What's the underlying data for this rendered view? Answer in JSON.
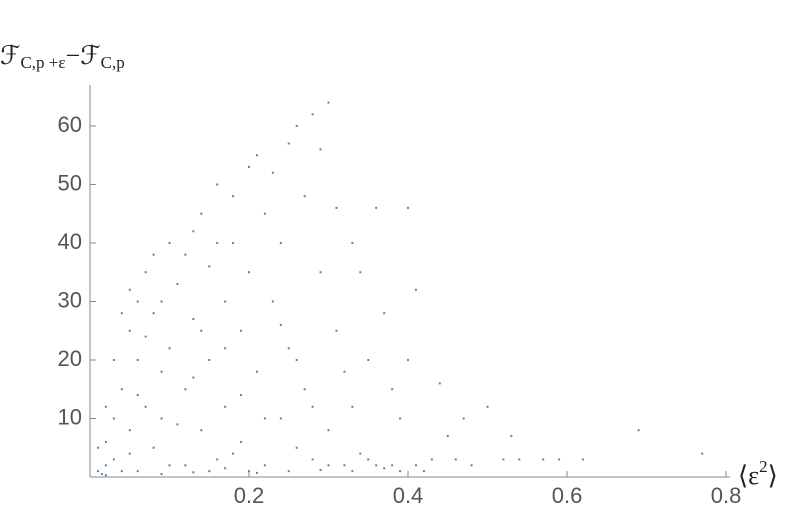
{
  "chart_data": {
    "type": "scatter",
    "x_label": {
      "open": "⟨ε",
      "power": "2",
      "close": "⟩"
    },
    "y_label": {
      "main1": "ℱ",
      "sub1": "C,p +ε",
      "op": "−",
      "main2": "ℱ",
      "sub2": "C,p"
    },
    "color": "#5b7fb8",
    "xlim": [
      0,
      0.805
    ],
    "ylim": [
      0,
      67
    ],
    "xticks": [
      0.2,
      0.4,
      0.6,
      0.8
    ],
    "yticks": [
      10,
      20,
      30,
      40,
      50,
      60
    ],
    "x": [
      0.01,
      0.02,
      0.015,
      0.03,
      0.02,
      0.04,
      0.05,
      0.03,
      0.04,
      0.05,
      0.06,
      0.05,
      0.07,
      0.06,
      0.08,
      0.07,
      0.09,
      0.08,
      0.1,
      0.09,
      0.1,
      0.11,
      0.12,
      0.12,
      0.13,
      0.13,
      0.14,
      0.14,
      0.15,
      0.15,
      0.16,
      0.16,
      0.17,
      0.17,
      0.18,
      0.18,
      0.19,
      0.19,
      0.2,
      0.2,
      0.21,
      0.21,
      0.22,
      0.22,
      0.23,
      0.23,
      0.24,
      0.24,
      0.25,
      0.25,
      0.26,
      0.26,
      0.27,
      0.27,
      0.28,
      0.28,
      0.29,
      0.29,
      0.3,
      0.3,
      0.31,
      0.31,
      0.32,
      0.33,
      0.33,
      0.34,
      0.35,
      0.35,
      0.36,
      0.37,
      0.38,
      0.38,
      0.39,
      0.4,
      0.4,
      0.41,
      0.41,
      0.43,
      0.44,
      0.45,
      0.46,
      0.47,
      0.48,
      0.5,
      0.52,
      0.53,
      0.54,
      0.57,
      0.59,
      0.62,
      0.69,
      0.77,
      0.02,
      0.03,
      0.04,
      0.05,
      0.06,
      0.07,
      0.08,
      0.09,
      0.1,
      0.11,
      0.12,
      0.13,
      0.14,
      0.15,
      0.16,
      0.17,
      0.18,
      0.19,
      0.2,
      0.22,
      0.24,
      0.26,
      0.28,
      0.3,
      0.32,
      0.34,
      0.36,
      0.39,
      0.42,
      0.01,
      0.02,
      0.06,
      0.09,
      0.13,
      0.17,
      0.21,
      0.25,
      0.29,
      0.33,
      0.37
    ],
    "values": [
      1,
      2,
      0.5,
      3,
      6,
      1,
      4,
      10,
      15,
      8,
      20,
      25,
      12,
      30,
      5,
      35,
      18,
      28,
      40,
      10,
      22,
      33,
      2,
      15,
      42,
      27,
      8,
      45,
      36,
      20,
      50,
      3,
      30,
      12,
      48,
      40,
      25,
      6,
      53,
      35,
      55,
      18,
      45,
      2,
      52,
      30,
      40,
      10,
      57,
      22,
      60,
      5,
      48,
      15,
      62,
      3,
      56,
      35,
      64,
      8,
      46,
      25,
      2,
      40,
      12,
      35,
      3,
      20,
      46,
      28,
      2,
      15,
      10,
      46,
      20,
      32,
      2,
      3,
      16,
      7,
      3,
      10,
      2,
      12,
      3,
      7,
      3,
      3,
      3,
      3,
      8,
      4,
      12,
      20,
      28,
      32,
      14,
      24,
      38,
      30,
      2,
      9,
      38,
      17,
      25,
      1,
      40,
      22,
      4,
      14,
      1,
      10,
      26,
      20,
      12,
      2,
      18,
      4,
      2,
      1,
      1,
      5,
      0.3,
      1,
      0.5,
      0.8,
      1.5,
      0.7,
      1,
      1.2,
      1,
      1.5
    ]
  }
}
